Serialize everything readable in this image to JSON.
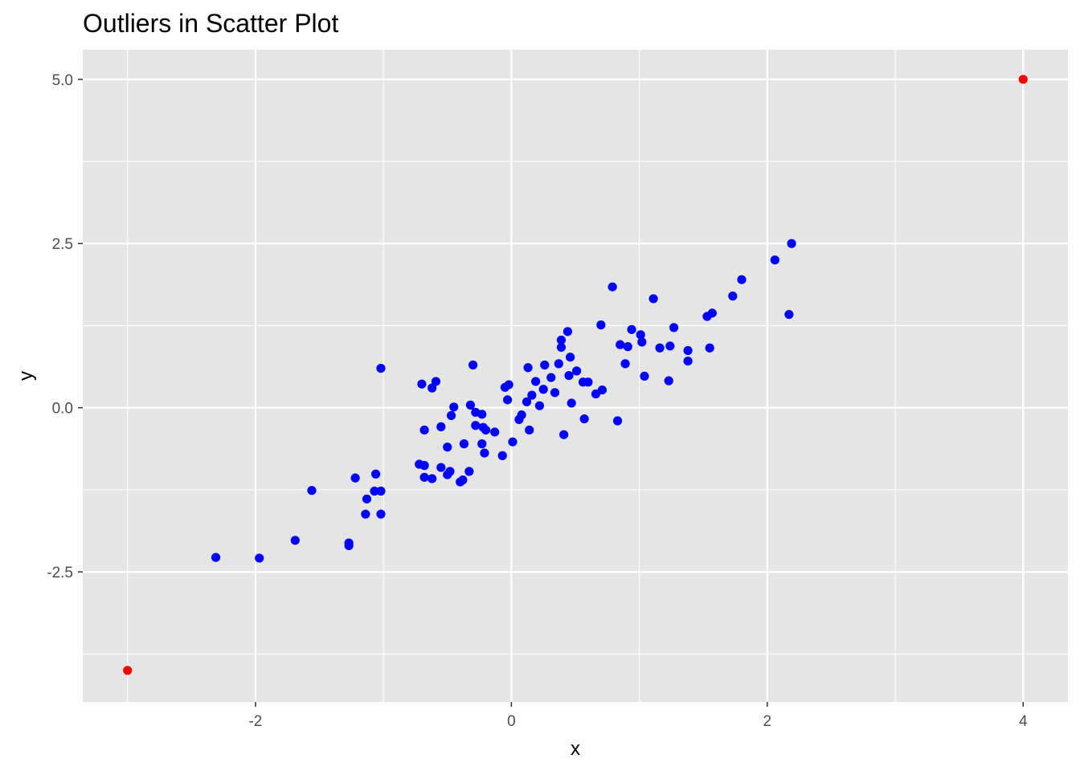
{
  "chart_data": {
    "type": "scatter",
    "title": "Outliers in Scatter Plot",
    "xlabel": "x",
    "ylabel": "y",
    "xlim": [
      -3.35,
      4.35
    ],
    "ylim": [
      -4.48,
      5.45
    ],
    "x_ticks": [
      -2,
      0,
      2,
      4
    ],
    "x_tick_labels": [
      "-2",
      "0",
      "2",
      "4"
    ],
    "y_ticks": [
      -2.5,
      0.0,
      2.5,
      5.0
    ],
    "y_tick_labels": [
      "-2.5",
      "0.0",
      "2.5",
      "5.0"
    ],
    "x_minor_ticks": [
      -3,
      -1,
      1,
      3
    ],
    "y_minor_ticks": [
      -3.75,
      -1.25,
      1.25,
      3.75
    ],
    "grid": true,
    "legend": "none",
    "colors": {
      "panel": "#e5e5e5",
      "grid": "#ffffff",
      "normal": "#0000ff",
      "outlier": "#ff0000"
    },
    "series": [
      {
        "color": "#0000ff",
        "points": [
          [
            -2.31,
            -2.28
          ],
          [
            -1.97,
            -2.29
          ],
          [
            -1.69,
            -2.02
          ],
          [
            -1.56,
            -1.26
          ],
          [
            -1.27,
            -2.06
          ],
          [
            -1.27,
            -2.1
          ],
          [
            -1.22,
            -1.07
          ],
          [
            -1.13,
            -1.39
          ],
          [
            -1.14,
            -1.62
          ],
          [
            -1.07,
            -1.27
          ],
          [
            -1.06,
            -1.01
          ],
          [
            -1.02,
            -1.27
          ],
          [
            -1.02,
            -1.62
          ],
          [
            -1.02,
            0.6
          ],
          [
            -0.72,
            -0.86
          ],
          [
            -0.7,
            0.36
          ],
          [
            -0.68,
            -0.34
          ],
          [
            -0.68,
            -0.88
          ],
          [
            -0.68,
            -1.06
          ],
          [
            -0.62,
            0.3
          ],
          [
            -0.62,
            -1.08
          ],
          [
            -0.59,
            0.4
          ],
          [
            -0.55,
            -0.29
          ],
          [
            -0.55,
            -0.91
          ],
          [
            -0.5,
            -0.6
          ],
          [
            -0.5,
            -1.02
          ],
          [
            -0.48,
            -0.97
          ],
          [
            -0.47,
            -0.12
          ],
          [
            -0.45,
            0.01
          ],
          [
            -0.4,
            -1.13
          ],
          [
            -0.38,
            -1.1
          ],
          [
            -0.37,
            -0.55
          ],
          [
            -0.33,
            -0.97
          ],
          [
            -0.32,
            0.04
          ],
          [
            -0.3,
            0.65
          ],
          [
            -0.28,
            -0.07
          ],
          [
            -0.28,
            -0.27
          ],
          [
            -0.23,
            -0.1
          ],
          [
            -0.23,
            -0.55
          ],
          [
            -0.22,
            -0.3
          ],
          [
            -0.21,
            -0.69
          ],
          [
            -0.2,
            -0.34
          ],
          [
            -0.13,
            -0.37
          ],
          [
            -0.07,
            -0.73
          ],
          [
            -0.05,
            0.31
          ],
          [
            -0.03,
            0.12
          ],
          [
            -0.02,
            0.35
          ],
          [
            0.01,
            -0.52
          ],
          [
            0.06,
            -0.18
          ],
          [
            0.08,
            -0.11
          ],
          [
            0.12,
            0.09
          ],
          [
            0.13,
            0.61
          ],
          [
            0.14,
            -0.34
          ],
          [
            0.16,
            0.19
          ],
          [
            0.19,
            0.4
          ],
          [
            0.22,
            0.03
          ],
          [
            0.25,
            0.28
          ],
          [
            0.26,
            0.65
          ],
          [
            0.31,
            0.46
          ],
          [
            0.34,
            0.23
          ],
          [
            0.37,
            0.67
          ],
          [
            0.39,
            0.92
          ],
          [
            0.39,
            1.03
          ],
          [
            0.41,
            -0.41
          ],
          [
            0.44,
            1.16
          ],
          [
            0.45,
            0.49
          ],
          [
            0.46,
            0.77
          ],
          [
            0.47,
            0.07
          ],
          [
            0.51,
            0.56
          ],
          [
            0.56,
            0.39
          ],
          [
            0.57,
            -0.17
          ],
          [
            0.6,
            0.39
          ],
          [
            0.66,
            0.21
          ],
          [
            0.7,
            1.26
          ],
          [
            0.71,
            0.27
          ],
          [
            0.79,
            1.84
          ],
          [
            0.83,
            -0.2
          ],
          [
            0.85,
            0.96
          ],
          [
            0.89,
            0.67
          ],
          [
            0.91,
            0.93
          ],
          [
            0.94,
            1.19
          ],
          [
            1.01,
            1.11
          ],
          [
            1.02,
            1.0
          ],
          [
            1.04,
            0.48
          ],
          [
            1.11,
            1.66
          ],
          [
            1.16,
            0.91
          ],
          [
            1.23,
            0.41
          ],
          [
            1.24,
            0.94
          ],
          [
            1.27,
            1.22
          ],
          [
            1.38,
            0.71
          ],
          [
            1.38,
            0.87
          ],
          [
            1.53,
            1.39
          ],
          [
            1.55,
            0.91
          ],
          [
            1.57,
            1.44
          ],
          [
            1.73,
            1.7
          ],
          [
            1.8,
            1.95
          ],
          [
            2.06,
            2.25
          ],
          [
            2.17,
            1.42
          ],
          [
            2.19,
            2.5
          ]
        ]
      },
      {
        "color": "#ff0000",
        "points": [
          [
            -3.0,
            -4.0
          ],
          [
            4.0,
            5.0
          ]
        ]
      }
    ]
  }
}
